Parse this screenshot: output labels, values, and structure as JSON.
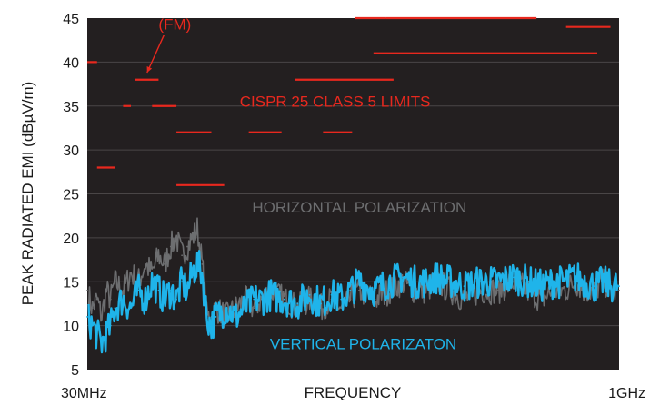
{
  "chart_data": {
    "type": "line",
    "xlabel": "FREQUENCY",
    "ylabel": "PEAK RADIATED EMI (dBµV/m)",
    "x_scale": "log",
    "x_unit": "MHz",
    "xlim": [
      30,
      1000
    ],
    "ylim": [
      5,
      45
    ],
    "x_tick_labels": [
      {
        "value": 30,
        "label": "30MHz"
      },
      {
        "value": 1000,
        "label": "1GHz"
      }
    ],
    "y_ticks": [
      5,
      10,
      15,
      20,
      25,
      30,
      35,
      40,
      45
    ],
    "grid": "horizontal",
    "colors": {
      "background": "#231f20",
      "grid": "#4a4647",
      "limits": "#e8281e",
      "horizontal": "#6d6e70",
      "vertical": "#1fb4ea"
    },
    "series": [
      {
        "name": "HORIZONTAL POLARIZATION",
        "color": "#6d6e70",
        "x": [
          30,
          31,
          32,
          33,
          34,
          35,
          36,
          38,
          40,
          42,
          44,
          46,
          48,
          50,
          52,
          54,
          56,
          58,
          60,
          62,
          64,
          66,
          68,
          70,
          75,
          80,
          85,
          90,
          95,
          100,
          110,
          120,
          130,
          140,
          150,
          160,
          170,
          180,
          200,
          220,
          240,
          260,
          280,
          300,
          330,
          360,
          400,
          450,
          500,
          550,
          600,
          650,
          700,
          750,
          800,
          850,
          900,
          950,
          1000
        ],
        "y": [
          14,
          12,
          13,
          11,
          14,
          13,
          15,
          14,
          16,
          15,
          17,
          16,
          18,
          17,
          19,
          20,
          18,
          19,
          20,
          21,
          17,
          11,
          11,
          12,
          11,
          12,
          13,
          12,
          13,
          14,
          13,
          12,
          13,
          12,
          13,
          12,
          13,
          14,
          13,
          14,
          15,
          14,
          14,
          15,
          14,
          13,
          14,
          14,
          15,
          14,
          13,
          14,
          14,
          15,
          14,
          14,
          15,
          14,
          14
        ]
      },
      {
        "name": "VERTICAL POLARIZATON",
        "color": "#1fb4ea",
        "x": [
          30,
          31,
          32,
          33,
          34,
          35,
          36,
          38,
          40,
          42,
          44,
          46,
          48,
          50,
          52,
          54,
          56,
          58,
          60,
          62,
          64,
          66,
          68,
          70,
          75,
          80,
          85,
          90,
          95,
          100,
          110,
          120,
          130,
          140,
          150,
          160,
          170,
          180,
          200,
          220,
          240,
          260,
          280,
          300,
          330,
          360,
          400,
          450,
          500,
          550,
          600,
          650,
          700,
          750,
          800,
          850,
          900,
          950,
          1000
        ],
        "y": [
          11,
          10,
          9,
          8,
          9,
          10,
          12,
          13,
          12,
          14,
          13,
          15,
          14,
          13,
          14,
          13,
          15,
          14,
          16,
          17,
          16,
          11,
          10,
          11,
          12,
          11,
          12,
          13,
          13,
          13.5,
          13,
          12.5,
          13.5,
          12.5,
          13.5,
          13,
          14,
          15,
          14,
          15,
          15.5,
          15,
          15,
          15.5,
          15,
          14.5,
          15,
          15,
          15.5,
          15,
          14.5,
          15,
          15,
          15.5,
          15,
          14.5,
          15,
          14.5,
          14.5
        ]
      }
    ],
    "limits": {
      "color": "#e8281e",
      "segments": [
        {
          "x1": 30,
          "x2": 32,
          "y": 40
        },
        {
          "x1": 32,
          "x2": 36,
          "y": 28
        },
        {
          "x1": 41,
          "x2": 48,
          "y": 38
        },
        {
          "x1": 38,
          "x2": 40,
          "y": 35
        },
        {
          "x1": 46,
          "x2": 54,
          "y": 35
        },
        {
          "x1": 54,
          "x2": 68,
          "y": 32
        },
        {
          "x1": 54,
          "x2": 74,
          "y": 26
        },
        {
          "x1": 87,
          "x2": 108,
          "y": 32
        },
        {
          "x1": 142,
          "x2": 172,
          "y": 32
        },
        {
          "x1": 118,
          "x2": 226,
          "y": 38
        },
        {
          "x1": 175,
          "x2": 215,
          "y": 45
        },
        {
          "x1": 215,
          "x2": 580,
          "y": 45
        },
        {
          "x1": 198,
          "x2": 866,
          "y": 41
        },
        {
          "x1": 705,
          "x2": 945,
          "y": 44
        }
      ]
    },
    "annotations": [
      {
        "text": "(FM)",
        "x": 48,
        "y": 43.7,
        "color": "#e8281e",
        "arrow_to": [
          44.5,
          38.8
        ]
      },
      {
        "text": "CISPR 25 CLASS 5 LIMITS",
        "x": 82,
        "y": 34.9,
        "color": "#e8281e"
      },
      {
        "text": "HORIZONTAL POLARIZATION",
        "x": 89,
        "y": 22.9,
        "color": "#6d6e70"
      },
      {
        "text": "VERTICAL POLARIZATON",
        "x": 100,
        "y": 7.3,
        "color": "#1fb4ea"
      }
    ]
  }
}
